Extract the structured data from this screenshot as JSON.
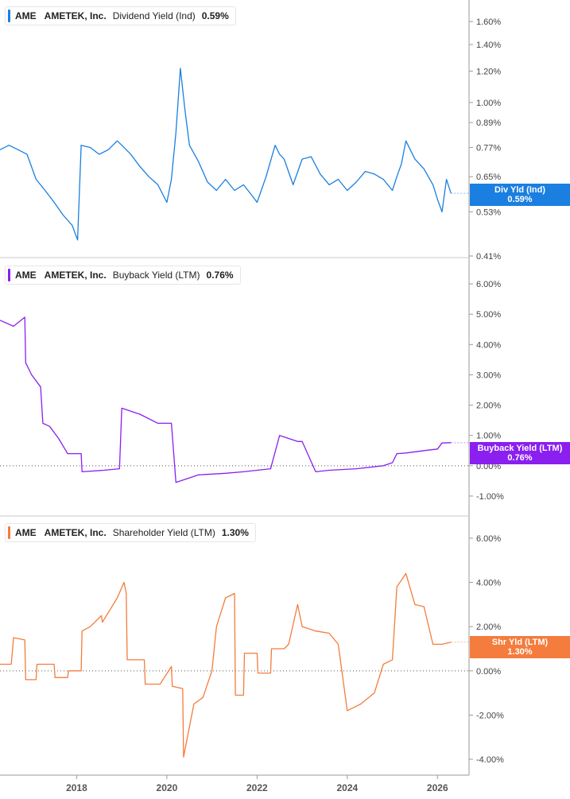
{
  "panels": [
    {
      "ticker": "AME",
      "company": "AMETEK, Inc.",
      "metric": "Dividend Yield (Ind)",
      "value": "0.59%",
      "tag_label": "Div Yld (Ind)",
      "tag_value": "0.59%",
      "color": "#1a7fe0"
    },
    {
      "ticker": "AME",
      "company": "AMETEK, Inc.",
      "metric": "Buyback Yield (LTM)",
      "value": "0.76%",
      "tag_label": "Buyback Yield (LTM)",
      "tag_value": "0.76%",
      "color": "#8a1ff0"
    },
    {
      "ticker": "AME",
      "company": "AMETEK, Inc.",
      "metric": "Shareholder Yield (LTM)",
      "value": "1.30%",
      "tag_label": "Shr Yld (LTM)",
      "tag_value": "1.30%",
      "color": "#f47c3c"
    }
  ],
  "chart_data": [
    {
      "type": "line",
      "title": "",
      "scale": "log",
      "ylim": [
        0.41,
        1.7
      ],
      "y_ticks": [
        "1.60%",
        "1.40%",
        "1.20%",
        "1.00%",
        "0.89%",
        "0.77%",
        "0.65%",
        "0.53%",
        "0.41%"
      ],
      "y_tick_values": [
        1.6,
        1.4,
        1.2,
        1.0,
        0.89,
        0.77,
        0.65,
        0.53,
        0.41
      ],
      "series": [
        {
          "name": "Dividend Yield (Ind)",
          "x": [
            2016.3,
            2016.5,
            2016.7,
            2016.9,
            2017.1,
            2017.3,
            2017.5,
            2017.7,
            2017.9,
            2018.02,
            2018.1,
            2018.3,
            2018.5,
            2018.7,
            2018.9,
            2019.0,
            2019.2,
            2019.4,
            2019.6,
            2019.8,
            2020.0,
            2020.1,
            2020.2,
            2020.3,
            2020.4,
            2020.5,
            2020.7,
            2020.9,
            2021.1,
            2021.3,
            2021.5,
            2021.7,
            2021.9,
            2022.0,
            2022.2,
            2022.4,
            2022.5,
            2022.6,
            2022.8,
            2023.0,
            2023.2,
            2023.4,
            2023.6,
            2023.8,
            2024.0,
            2024.2,
            2024.4,
            2024.6,
            2024.8,
            2025.0,
            2025.1,
            2025.2,
            2025.3,
            2025.5,
            2025.7,
            2025.9,
            2026.0,
            2026.1,
            2026.2,
            2026.3
          ],
          "values": [
            0.76,
            0.78,
            0.76,
            0.74,
            0.64,
            0.6,
            0.56,
            0.52,
            0.49,
            0.45,
            0.78,
            0.77,
            0.74,
            0.76,
            0.8,
            0.78,
            0.74,
            0.69,
            0.65,
            0.62,
            0.56,
            0.64,
            0.84,
            1.22,
            0.96,
            0.78,
            0.71,
            0.63,
            0.6,
            0.64,
            0.6,
            0.62,
            0.58,
            0.56,
            0.65,
            0.78,
            0.74,
            0.72,
            0.62,
            0.72,
            0.73,
            0.66,
            0.62,
            0.64,
            0.6,
            0.63,
            0.67,
            0.66,
            0.64,
            0.6,
            0.65,
            0.7,
            0.8,
            0.72,
            0.68,
            0.62,
            0.57,
            0.53,
            0.64,
            0.59
          ]
        }
      ]
    },
    {
      "type": "line",
      "title": "",
      "ylim": [
        -1.5,
        6.5
      ],
      "y_ticks": [
        "6.00%",
        "5.00%",
        "4.00%",
        "3.00%",
        "2.00%",
        "1.00%",
        "0.00%",
        "-1.00%"
      ],
      "y_tick_values": [
        6,
        5,
        4,
        3,
        2,
        1,
        0,
        -1
      ],
      "reference_line": 0,
      "series": [
        {
          "name": "Buyback Yield (LTM)",
          "x": [
            2016.3,
            2016.6,
            2016.85,
            2016.87,
            2017.0,
            2017.2,
            2017.25,
            2017.4,
            2017.6,
            2017.8,
            2017.95,
            2018.1,
            2018.12,
            2018.6,
            2018.95,
            2019.0,
            2019.4,
            2019.8,
            2020.1,
            2020.2,
            2020.5,
            2020.7,
            2021.3,
            2021.7,
            2022.0,
            2022.3,
            2022.5,
            2022.9,
            2023.0,
            2023.3,
            2023.6,
            2024.2,
            2024.8,
            2025.0,
            2025.1,
            2025.3,
            2025.7,
            2026.0,
            2026.1,
            2026.3
          ],
          "values": [
            4.8,
            4.6,
            4.9,
            3.4,
            3.0,
            2.6,
            1.4,
            1.3,
            0.9,
            0.4,
            0.4,
            0.4,
            -0.2,
            -0.15,
            -0.1,
            1.9,
            1.7,
            1.4,
            1.4,
            -0.55,
            -0.4,
            -0.3,
            -0.25,
            -0.2,
            -0.15,
            -0.1,
            1.0,
            0.8,
            0.8,
            -0.2,
            -0.15,
            -0.1,
            0.0,
            0.1,
            0.4,
            0.42,
            0.5,
            0.55,
            0.75,
            0.76
          ]
        }
      ]
    },
    {
      "type": "line",
      "title": "",
      "ylim": [
        -4.5,
        6.5
      ],
      "y_ticks": [
        "6.00%",
        "4.00%",
        "2.00%",
        "0.00%",
        "-2.00%",
        "-4.00%"
      ],
      "y_tick_values": [
        6,
        4,
        2,
        0,
        -2,
        -4
      ],
      "reference_line": 0,
      "series": [
        {
          "name": "Shareholder Yield (LTM)",
          "x": [
            2016.3,
            2016.55,
            2016.6,
            2016.85,
            2016.87,
            2017.1,
            2017.12,
            2017.5,
            2017.52,
            2017.8,
            2017.82,
            2018.1,
            2018.12,
            2018.3,
            2018.55,
            2018.57,
            2018.9,
            2019.05,
            2019.1,
            2019.12,
            2019.5,
            2019.52,
            2019.85,
            2020.1,
            2020.12,
            2020.35,
            2020.37,
            2020.6,
            2020.8,
            2021.0,
            2021.1,
            2021.3,
            2021.5,
            2021.52,
            2021.7,
            2021.72,
            2022.0,
            2022.02,
            2022.3,
            2022.32,
            2022.6,
            2022.7,
            2022.9,
            2023.0,
            2023.3,
            2023.6,
            2023.8,
            2024.0,
            2024.3,
            2024.6,
            2024.8,
            2025.0,
            2025.1,
            2025.3,
            2025.5,
            2025.7,
            2025.9,
            2026.1,
            2026.3
          ],
          "values": [
            0.3,
            0.3,
            1.5,
            1.4,
            -0.4,
            -0.4,
            0.3,
            0.3,
            -0.3,
            -0.3,
            0.0,
            0.0,
            1.8,
            2.0,
            2.5,
            2.2,
            3.3,
            4.0,
            3.5,
            0.5,
            0.5,
            -0.6,
            -0.6,
            0.2,
            -0.7,
            -0.8,
            -3.9,
            -1.5,
            -1.2,
            0.0,
            2.0,
            3.3,
            3.5,
            -1.1,
            -1.1,
            0.8,
            0.8,
            -0.1,
            -0.1,
            1.0,
            1.0,
            1.2,
            3.0,
            2.0,
            1.8,
            1.7,
            1.2,
            -1.8,
            -1.5,
            -1.0,
            0.3,
            0.5,
            3.8,
            4.4,
            3.0,
            2.9,
            1.2,
            1.2,
            1.3
          ]
        }
      ]
    }
  ],
  "x_axis": {
    "ticks": [
      "2018",
      "2020",
      "2022",
      "2024",
      "2026"
    ],
    "tick_values": [
      2018,
      2020,
      2022,
      2024,
      2026
    ],
    "xlim": [
      2016.3,
      2026.7
    ]
  }
}
